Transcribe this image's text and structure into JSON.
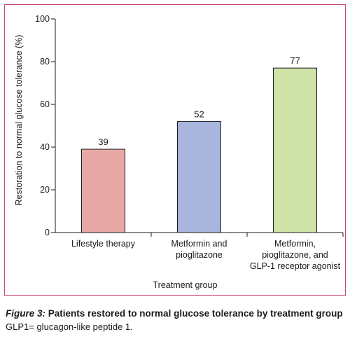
{
  "chart_data": {
    "type": "bar",
    "categories": [
      [
        "Lifestyle therapy"
      ],
      [
        "Metformin and",
        "pioglitazone"
      ],
      [
        "Metformin,",
        "pioglitazone, and",
        "GLP-1 receptor agonist"
      ]
    ],
    "values": [
      39,
      52,
      77
    ],
    "data_labels": [
      "39",
      "52",
      "77"
    ],
    "bar_colors": [
      "#e8a9a6",
      "#a9b5dd",
      "#cfe2a8"
    ],
    "xlabel": "Treatment group",
    "ylabel": "Restoration to normal glucose tolerance (%)",
    "ylim": [
      0,
      100
    ],
    "yticks": [
      0,
      20,
      40,
      60,
      80,
      100
    ],
    "grid": false,
    "frame_color": "#c9486a"
  },
  "caption": {
    "figure_ref": "Figure 3:",
    "title": "Patients restored to normal glucose tolerance by treatment group",
    "note": "GLP1= glucagon-like peptide 1."
  }
}
